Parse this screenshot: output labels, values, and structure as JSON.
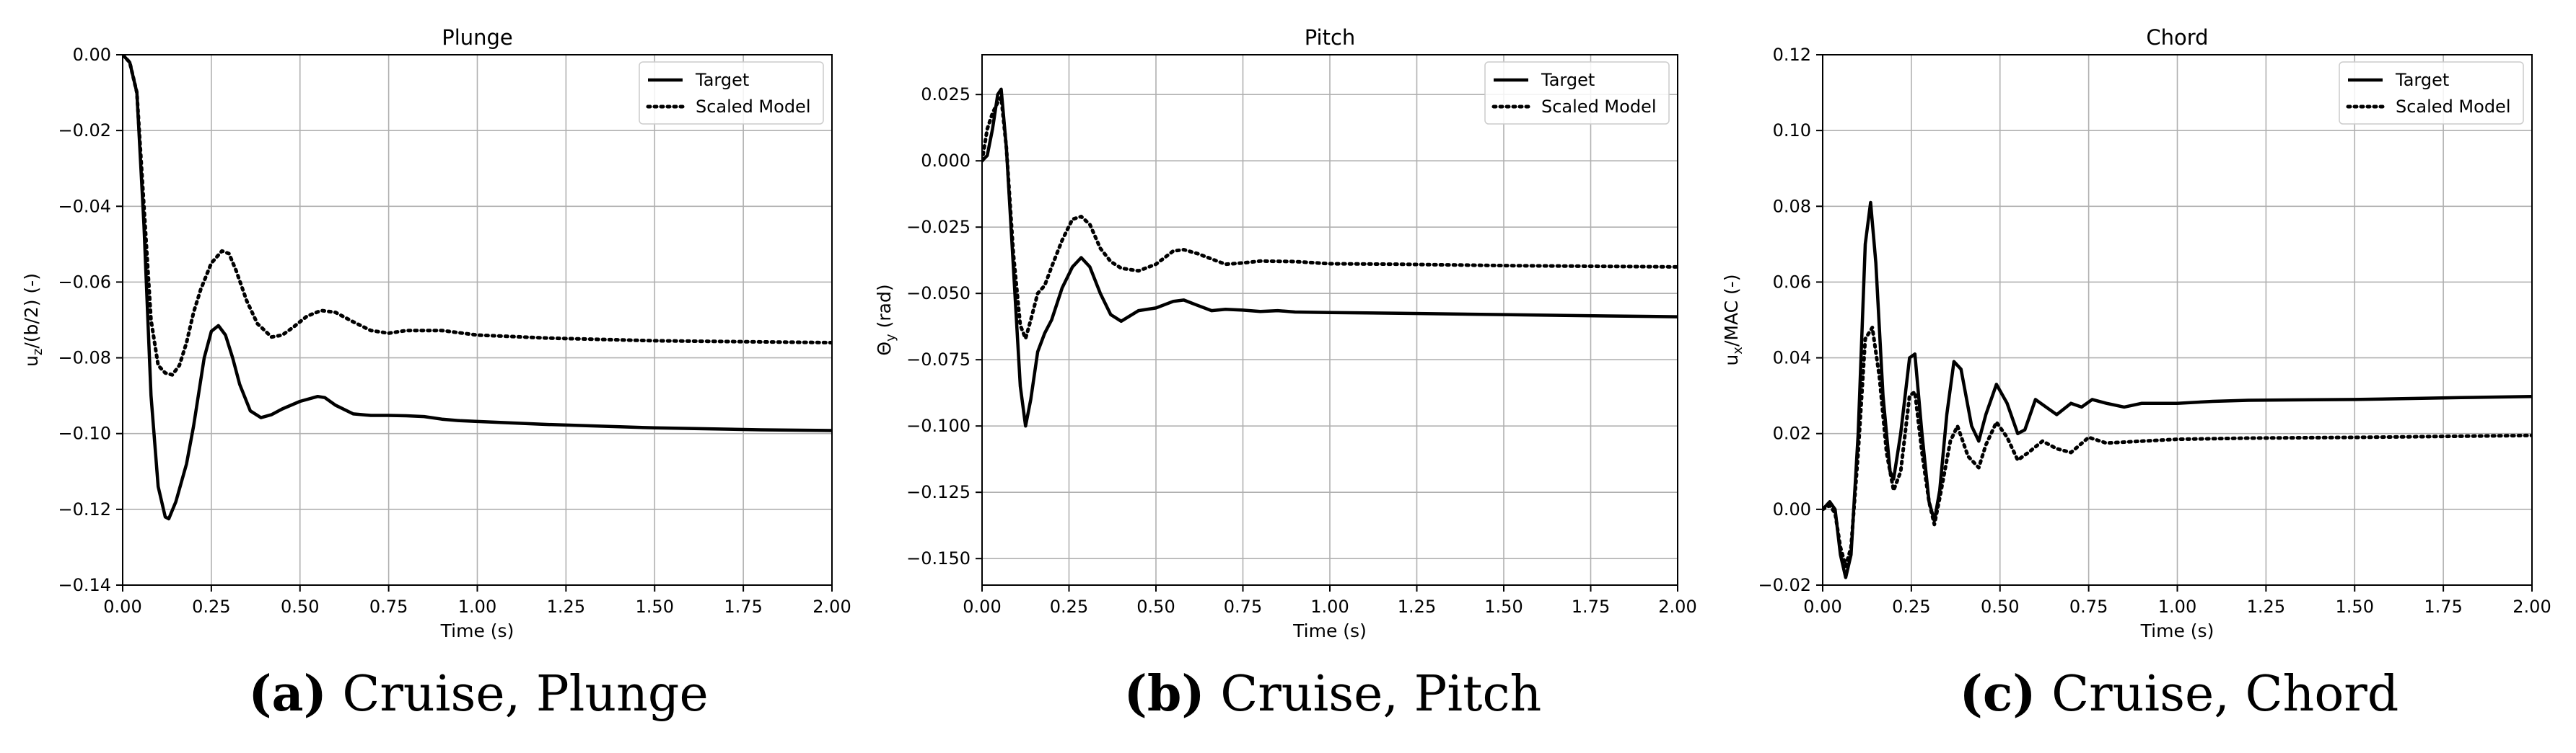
{
  "figure": {
    "captions": [
      {
        "letter": "a",
        "text": "Cruise, Plunge"
      },
      {
        "letter": "b",
        "text": "Cruise, Pitch"
      },
      {
        "letter": "c",
        "text": "Cruise, Chord"
      }
    ]
  },
  "chart_data": [
    {
      "type": "line",
      "title": "Plunge",
      "xlabel": "Time (s)",
      "ylabel": "u_z/(b/2) (-)",
      "xlim": [
        0,
        2.0
      ],
      "ylim": [
        -0.14,
        0.0
      ],
      "xticks": [
        0,
        0.25,
        0.5,
        0.75,
        1.0,
        1.25,
        1.5,
        1.75,
        2.0
      ],
      "xtick_labels": [
        "0.00",
        "0.25",
        "0.50",
        "0.75",
        "1.00",
        "1.25",
        "1.50",
        "1.75",
        "2.00"
      ],
      "yticks": [
        -0.14,
        -0.12,
        -0.1,
        -0.08,
        -0.06,
        -0.04,
        -0.02,
        0.0
      ],
      "ytick_labels": [
        "−0.14",
        "−0.12",
        "−0.10",
        "−0.08",
        "−0.06",
        "−0.04",
        "−0.02",
        "0.00"
      ],
      "grid": true,
      "legend": "top-right",
      "series": [
        {
          "name": "Target",
          "style": "solid",
          "x": [
            0,
            0.02,
            0.04,
            0.06,
            0.08,
            0.1,
            0.12,
            0.13,
            0.15,
            0.18,
            0.2,
            0.23,
            0.25,
            0.27,
            0.29,
            0.31,
            0.33,
            0.36,
            0.39,
            0.42,
            0.45,
            0.5,
            0.55,
            0.57,
            0.6,
            0.65,
            0.7,
            0.75,
            0.8,
            0.85,
            0.9,
            0.95,
            1.0,
            1.2,
            1.5,
            1.8,
            2.0
          ],
          "y": [
            0,
            -0.002,
            -0.01,
            -0.045,
            -0.09,
            -0.114,
            -0.122,
            -0.1225,
            -0.118,
            -0.108,
            -0.098,
            -0.08,
            -0.073,
            -0.0715,
            -0.074,
            -0.08,
            -0.087,
            -0.094,
            -0.0958,
            -0.095,
            -0.0935,
            -0.0915,
            -0.0902,
            -0.0905,
            -0.0925,
            -0.0948,
            -0.0952,
            -0.0952,
            -0.0953,
            -0.0955,
            -0.0962,
            -0.0966,
            -0.0968,
            -0.0976,
            -0.0985,
            -0.099,
            -0.0992
          ]
        },
        {
          "name": "Scaled Model",
          "style": "dotted",
          "x": [
            0,
            0.02,
            0.04,
            0.06,
            0.08,
            0.1,
            0.12,
            0.14,
            0.16,
            0.18,
            0.2,
            0.22,
            0.25,
            0.28,
            0.3,
            0.32,
            0.35,
            0.38,
            0.42,
            0.45,
            0.48,
            0.52,
            0.56,
            0.6,
            0.65,
            0.7,
            0.75,
            0.8,
            0.9,
            1.0,
            1.2,
            1.5,
            2.0
          ],
          "y": [
            0,
            -0.002,
            -0.01,
            -0.04,
            -0.07,
            -0.082,
            -0.084,
            -0.0845,
            -0.082,
            -0.076,
            -0.068,
            -0.062,
            -0.055,
            -0.0518,
            -0.0525,
            -0.057,
            -0.065,
            -0.071,
            -0.0745,
            -0.074,
            -0.072,
            -0.069,
            -0.0675,
            -0.068,
            -0.0705,
            -0.0728,
            -0.0735,
            -0.0728,
            -0.0728,
            -0.074,
            -0.0748,
            -0.0755,
            -0.076
          ]
        }
      ]
    },
    {
      "type": "line",
      "title": "Pitch",
      "xlabel": "Time (s)",
      "ylabel": "Θ_y (rad)",
      "xlim": [
        0,
        2.0
      ],
      "ylim": [
        -0.16,
        0.04
      ],
      "xticks": [
        0,
        0.25,
        0.5,
        0.75,
        1.0,
        1.25,
        1.5,
        1.75,
        2.0
      ],
      "xtick_labels": [
        "0.00",
        "0.25",
        "0.50",
        "0.75",
        "1.00",
        "1.25",
        "1.50",
        "1.75",
        "2.00"
      ],
      "yticks": [
        -0.15,
        -0.125,
        -0.1,
        -0.075,
        -0.05,
        -0.025,
        0.0,
        0.025
      ],
      "ytick_labels": [
        "−0.150",
        "−0.125",
        "−0.100",
        "−0.075",
        "−0.050",
        "−0.025",
        "0.000",
        "0.025"
      ],
      "grid": true,
      "legend": "top-right",
      "series": [
        {
          "name": "Target",
          "style": "solid",
          "x": [
            0,
            0.015,
            0.03,
            0.045,
            0.055,
            0.07,
            0.09,
            0.11,
            0.125,
            0.14,
            0.16,
            0.18,
            0.2,
            0.23,
            0.26,
            0.285,
            0.31,
            0.34,
            0.37,
            0.4,
            0.45,
            0.5,
            0.55,
            0.58,
            0.62,
            0.66,
            0.7,
            0.75,
            0.8,
            0.85,
            0.9,
            1.0,
            1.2,
            1.5,
            1.8,
            2.0
          ],
          "y": [
            0,
            0.002,
            0.012,
            0.025,
            0.027,
            0.005,
            -0.04,
            -0.085,
            -0.1,
            -0.09,
            -0.072,
            -0.065,
            -0.06,
            -0.048,
            -0.04,
            -0.0365,
            -0.04,
            -0.05,
            -0.058,
            -0.0605,
            -0.0565,
            -0.0555,
            -0.053,
            -0.0525,
            -0.0545,
            -0.0565,
            -0.056,
            -0.0563,
            -0.0568,
            -0.0565,
            -0.057,
            -0.0572,
            -0.0575,
            -0.058,
            -0.0585,
            -0.0588
          ]
        },
        {
          "name": "Scaled Model",
          "style": "dotted",
          "x": [
            0,
            0.015,
            0.03,
            0.045,
            0.055,
            0.07,
            0.09,
            0.11,
            0.125,
            0.14,
            0.16,
            0.18,
            0.2,
            0.23,
            0.26,
            0.285,
            0.31,
            0.34,
            0.37,
            0.4,
            0.45,
            0.5,
            0.55,
            0.58,
            0.62,
            0.66,
            0.7,
            0.75,
            0.8,
            0.9,
            1.0,
            1.2,
            1.5,
            2.0
          ],
          "y": [
            0,
            0.012,
            0.018,
            0.022,
            0.024,
            0.005,
            -0.035,
            -0.062,
            -0.067,
            -0.06,
            -0.05,
            -0.047,
            -0.04,
            -0.03,
            -0.022,
            -0.021,
            -0.024,
            -0.033,
            -0.038,
            -0.0405,
            -0.0415,
            -0.039,
            -0.034,
            -0.0335,
            -0.035,
            -0.037,
            -0.039,
            -0.0385,
            -0.0378,
            -0.038,
            -0.0388,
            -0.039,
            -0.0395,
            -0.04
          ]
        }
      ]
    },
    {
      "type": "line",
      "title": "Chord",
      "xlabel": "Time (s)",
      "ylabel": "u_x/MAC (-)",
      "xlim": [
        0,
        2.0
      ],
      "ylim": [
        -0.02,
        0.12
      ],
      "xticks": [
        0,
        0.25,
        0.5,
        0.75,
        1.0,
        1.25,
        1.5,
        1.75,
        2.0
      ],
      "xtick_labels": [
        "0.00",
        "0.25",
        "0.50",
        "0.75",
        "1.00",
        "1.25",
        "1.50",
        "1.75",
        "2.00"
      ],
      "yticks": [
        -0.02,
        0.0,
        0.02,
        0.04,
        0.06,
        0.08,
        0.1,
        0.12
      ],
      "ytick_labels": [
        "−0.02",
        "0.00",
        "0.02",
        "0.04",
        "0.06",
        "0.08",
        "0.10",
        "0.12"
      ],
      "grid": true,
      "legend": "top-right",
      "series": [
        {
          "name": "Target",
          "style": "solid",
          "x": [
            0,
            0.02,
            0.035,
            0.05,
            0.065,
            0.08,
            0.1,
            0.12,
            0.135,
            0.15,
            0.17,
            0.19,
            0.2,
            0.22,
            0.245,
            0.26,
            0.28,
            0.3,
            0.315,
            0.33,
            0.35,
            0.37,
            0.39,
            0.42,
            0.44,
            0.46,
            0.49,
            0.52,
            0.55,
            0.57,
            0.6,
            0.63,
            0.66,
            0.7,
            0.73,
            0.76,
            0.8,
            0.85,
            0.9,
            0.95,
            1.0,
            1.1,
            1.2,
            1.5,
            1.8,
            2.0
          ],
          "y": [
            0,
            0.002,
            0,
            -0.012,
            -0.018,
            -0.012,
            0.02,
            0.07,
            0.081,
            0.065,
            0.03,
            0.01,
            0.008,
            0.02,
            0.04,
            0.041,
            0.02,
            0.002,
            -0.003,
            0.005,
            0.025,
            0.039,
            0.037,
            0.022,
            0.018,
            0.025,
            0.033,
            0.028,
            0.02,
            0.021,
            0.029,
            0.027,
            0.025,
            0.028,
            0.027,
            0.029,
            0.028,
            0.027,
            0.028,
            0.028,
            0.028,
            0.0285,
            0.0288,
            0.029,
            0.0295,
            0.0298
          ]
        },
        {
          "name": "Scaled Model",
          "style": "dotted",
          "x": [
            0,
            0.02,
            0.035,
            0.05,
            0.065,
            0.08,
            0.1,
            0.12,
            0.14,
            0.16,
            0.18,
            0.2,
            0.22,
            0.245,
            0.26,
            0.28,
            0.3,
            0.315,
            0.33,
            0.36,
            0.38,
            0.41,
            0.44,
            0.46,
            0.49,
            0.52,
            0.55,
            0.58,
            0.62,
            0.66,
            0.7,
            0.75,
            0.8,
            0.9,
            1.0,
            1.2,
            1.5,
            2.0
          ],
          "y": [
            0,
            0.001,
            -0.001,
            -0.01,
            -0.015,
            -0.01,
            0.015,
            0.045,
            0.048,
            0.035,
            0.015,
            0.005,
            0.01,
            0.03,
            0.031,
            0.015,
            0.002,
            -0.004,
            0.003,
            0.018,
            0.022,
            0.014,
            0.011,
            0.017,
            0.023,
            0.019,
            0.013,
            0.015,
            0.018,
            0.016,
            0.015,
            0.019,
            0.0175,
            0.018,
            0.0185,
            0.0188,
            0.019,
            0.0195
          ]
        }
      ]
    }
  ]
}
